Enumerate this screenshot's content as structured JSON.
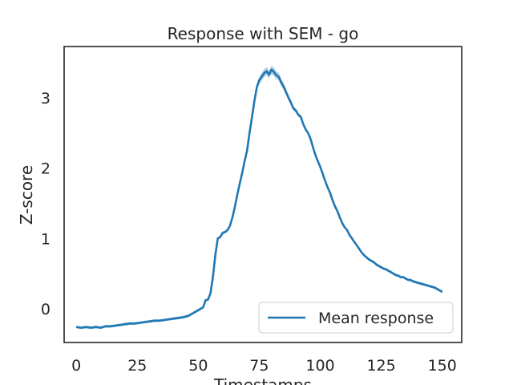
{
  "chart_data": {
    "type": "line",
    "title": "Response with SEM - go",
    "xlabel": "Timestamps",
    "ylabel": "Z-score",
    "xlim": [
      -5,
      158
    ],
    "ylim": [
      -0.48,
      3.73
    ],
    "xticks": [
      0,
      25,
      50,
      75,
      100,
      125,
      150
    ],
    "yticks": [
      0,
      1,
      2,
      3
    ],
    "grid": false,
    "legend": {
      "position": "bottom-right",
      "entries": [
        "Mean response"
      ]
    },
    "colors": {
      "line": "#1f77b4",
      "band": "#a6c8e4",
      "axes": "#262626"
    },
    "series": [
      {
        "name": "Mean response",
        "x": [
          0,
          2,
          4,
          6,
          8,
          10,
          12,
          14,
          16,
          18,
          20,
          22,
          24,
          26,
          28,
          30,
          32,
          34,
          36,
          38,
          40,
          42,
          44,
          46,
          48,
          50,
          51,
          52,
          53,
          54,
          55,
          56,
          57,
          58,
          59,
          60,
          61,
          62,
          63,
          64,
          65,
          66,
          67,
          68,
          69,
          70,
          71,
          72,
          73,
          74,
          75,
          76,
          77,
          78,
          79,
          80,
          81,
          82,
          83,
          84,
          85,
          86,
          87,
          88,
          89,
          90,
          91,
          92,
          93,
          94,
          95,
          96,
          97,
          98,
          99,
          100,
          101,
          102,
          103,
          104,
          105,
          106,
          107,
          108,
          109,
          110,
          111,
          112,
          113,
          114,
          115,
          116,
          117,
          118,
          119,
          120,
          121,
          122,
          123,
          124,
          125,
          126,
          127,
          128,
          129,
          130,
          131,
          132,
          133,
          134,
          135,
          136,
          137,
          138,
          139,
          140,
          141,
          142,
          143,
          144,
          145,
          146,
          147,
          148,
          149,
          150
        ],
        "y": [
          -0.26,
          -0.27,
          -0.26,
          -0.27,
          -0.26,
          -0.27,
          -0.25,
          -0.25,
          -0.24,
          -0.23,
          -0.22,
          -0.21,
          -0.21,
          -0.2,
          -0.19,
          -0.18,
          -0.17,
          -0.17,
          -0.16,
          -0.15,
          -0.14,
          -0.13,
          -0.12,
          -0.1,
          -0.06,
          -0.02,
          0.0,
          0.02,
          0.12,
          0.13,
          0.22,
          0.45,
          0.77,
          1.0,
          1.02,
          1.08,
          1.09,
          1.12,
          1.18,
          1.3,
          1.45,
          1.62,
          1.78,
          1.93,
          2.1,
          2.25,
          2.5,
          2.72,
          2.95,
          3.15,
          3.25,
          3.3,
          3.35,
          3.38,
          3.33,
          3.4,
          3.37,
          3.32,
          3.3,
          3.22,
          3.16,
          3.08,
          3.0,
          2.93,
          2.85,
          2.82,
          2.76,
          2.73,
          2.63,
          2.55,
          2.5,
          2.42,
          2.3,
          2.19,
          2.1,
          2.02,
          1.92,
          1.82,
          1.73,
          1.65,
          1.55,
          1.46,
          1.39,
          1.3,
          1.22,
          1.16,
          1.12,
          1.05,
          1.0,
          0.95,
          0.9,
          0.85,
          0.8,
          0.76,
          0.73,
          0.7,
          0.68,
          0.66,
          0.63,
          0.61,
          0.59,
          0.57,
          0.56,
          0.54,
          0.52,
          0.5,
          0.48,
          0.47,
          0.45,
          0.45,
          0.43,
          0.41,
          0.41,
          0.39,
          0.38,
          0.37,
          0.36,
          0.35,
          0.34,
          0.33,
          0.32,
          0.31,
          0.3,
          0.28,
          0.26,
          0.24
        ]
      }
    ]
  }
}
